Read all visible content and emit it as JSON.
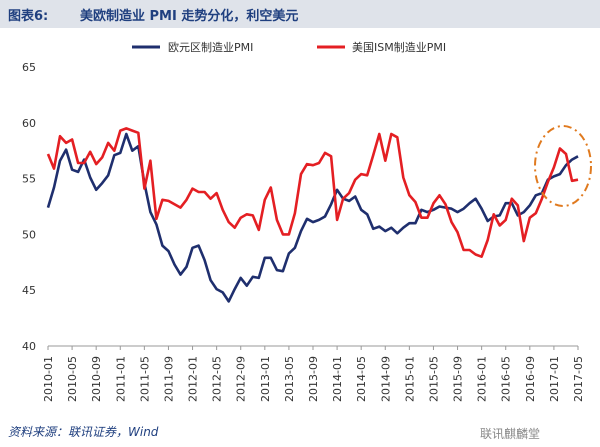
{
  "header": {
    "prefix": "图表6:",
    "title": "美欧制造业 PMI 走势分化，利空美元"
  },
  "footer": {
    "source": "资料来源：联讯证券，Wind",
    "watermark": "联讯麒麟堂"
  },
  "colors": {
    "euro": "#1f2f6e",
    "us": "#e41f23",
    "annotation": "#e07a1f",
    "header_bg": "#dfe3ea"
  },
  "chart_data": {
    "type": "line",
    "title": "美欧制造业 PMI 走势分化，利空美元",
    "xlabel": "",
    "ylabel": "",
    "ylim": [
      40,
      65
    ],
    "yticks": [
      40,
      45,
      50,
      55,
      60,
      65
    ],
    "xticks": [
      "2010-01",
      "2010-05",
      "2010-09",
      "2011-01",
      "2011-05",
      "2011-09",
      "2012-01",
      "2012-05",
      "2012-09",
      "2013-01",
      "2013-05",
      "2013-09",
      "2014-01",
      "2014-05",
      "2014-09",
      "2015-01",
      "2015-05",
      "2015-09",
      "2016-01",
      "2016-05",
      "2016-09",
      "2017-01",
      "2017-05"
    ],
    "grid": false,
    "legend": "top",
    "annotation": "dashed ellipse highlighting 2017 divergence",
    "series": [
      {
        "name": "欧元区制造业PMI",
        "color": "#1f2f6e",
        "values": [
          52.4,
          54.2,
          56.6,
          57.6,
          55.8,
          55.6,
          56.7,
          55.1,
          54.0,
          54.6,
          55.3,
          57.1,
          57.3,
          59.0,
          57.5,
          57.9,
          54.6,
          52.0,
          50.9,
          49.0,
          48.5,
          47.3,
          46.4,
          47.1,
          48.8,
          49.0,
          47.7,
          45.9,
          45.1,
          44.8,
          44.0,
          45.1,
          46.1,
          45.4,
          46.2,
          46.1,
          47.9,
          47.9,
          46.8,
          46.7,
          48.3,
          48.8,
          50.3,
          51.4,
          51.1,
          51.3,
          51.6,
          52.7,
          54.0,
          53.2,
          53.0,
          53.4,
          52.2,
          51.8,
          50.5,
          50.7,
          50.3,
          50.6,
          50.1,
          50.6,
          51.0,
          51.0,
          52.2,
          52.0,
          52.2,
          52.5,
          52.4,
          52.3,
          52.0,
          52.3,
          52.8,
          53.2,
          52.3,
          51.2,
          51.6,
          51.7,
          52.8,
          52.8,
          51.7,
          52.0,
          52.6,
          53.5,
          53.7,
          54.9,
          55.2,
          55.4,
          56.2,
          56.7,
          57.0
        ]
      },
      {
        "name": "美国ISM制造业PMI",
        "color": "#e41f23",
        "values": [
          57.2,
          55.9,
          58.8,
          58.2,
          58.5,
          56.4,
          56.4,
          57.4,
          56.3,
          56.9,
          58.2,
          57.5,
          59.3,
          59.5,
          59.3,
          59.1,
          54.1,
          56.6,
          51.4,
          53.1,
          53.0,
          52.7,
          52.4,
          53.1,
          54.1,
          53.8,
          53.8,
          53.2,
          53.7,
          52.2,
          51.1,
          50.6,
          51.5,
          51.8,
          51.7,
          50.4,
          53.1,
          54.2,
          51.3,
          50.0,
          50.0,
          51.9,
          55.4,
          56.3,
          56.2,
          56.4,
          57.3,
          57.0,
          51.3,
          53.2,
          53.7,
          54.9,
          55.4,
          55.3,
          57.1,
          59.0,
          56.6,
          59.0,
          58.7,
          55.1,
          53.5,
          52.9,
          51.5,
          51.5,
          52.8,
          53.5,
          52.7,
          51.1,
          50.2,
          48.6,
          48.6,
          48.2,
          48.0,
          49.5,
          51.8,
          50.8,
          51.3,
          53.2,
          52.6,
          49.4,
          51.5,
          51.9,
          53.2,
          54.7,
          56.0,
          57.7,
          57.2,
          54.8,
          54.9
        ]
      }
    ]
  }
}
